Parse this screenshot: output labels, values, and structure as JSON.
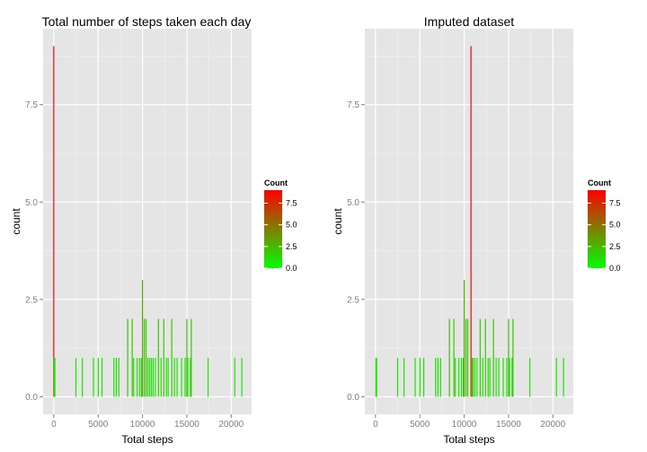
{
  "chart_data": [
    {
      "type": "bar",
      "title": "Total number of steps taken each day",
      "xlabel": "Total steps",
      "ylabel": "count",
      "xlim": [
        -1200,
        22300
      ],
      "ylim": [
        -0.45,
        9.45
      ],
      "x_ticks": [
        0,
        5000,
        10000,
        15000,
        20000
      ],
      "x_tick_labels": [
        "0",
        "5000",
        "10000",
        "15000",
        "20000"
      ],
      "y_ticks": [
        0,
        2.5,
        5,
        7.5
      ],
      "y_tick_labels": [
        "0.0",
        "2.5",
        "5.0",
        "7.5"
      ],
      "grid": true,
      "legend": {
        "title": "Count",
        "placement": "right",
        "range": [
          0,
          9
        ],
        "ticks": [
          0,
          2.5,
          5,
          7.5
        ],
        "tick_labels": [
          "0.0",
          "2.5",
          "5.0",
          "7.5"
        ],
        "color_low": "#00ff00",
        "color_high": "#ff0000"
      },
      "bars": [
        {
          "x": 0,
          "count": 9
        },
        {
          "x": 41,
          "count": 1
        },
        {
          "x": 126,
          "count": 1
        },
        {
          "x": 2492,
          "count": 1
        },
        {
          "x": 3219,
          "count": 1
        },
        {
          "x": 4472,
          "count": 1
        },
        {
          "x": 5018,
          "count": 1
        },
        {
          "x": 5441,
          "count": 1
        },
        {
          "x": 6778,
          "count": 1
        },
        {
          "x": 7047,
          "count": 1
        },
        {
          "x": 7336,
          "count": 1
        },
        {
          "x": 8334,
          "count": 2
        },
        {
          "x": 8841,
          "count": 2
        },
        {
          "x": 9000,
          "count": 1
        },
        {
          "x": 9400,
          "count": 1
        },
        {
          "x": 9700,
          "count": 1
        },
        {
          "x": 9900,
          "count": 1
        },
        {
          "x": 10000,
          "count": 3
        },
        {
          "x": 10200,
          "count": 2
        },
        {
          "x": 10400,
          "count": 2
        },
        {
          "x": 10600,
          "count": 1
        },
        {
          "x": 10800,
          "count": 1
        },
        {
          "x": 11000,
          "count": 1
        },
        {
          "x": 11200,
          "count": 1
        },
        {
          "x": 11450,
          "count": 1
        },
        {
          "x": 11800,
          "count": 2
        },
        {
          "x": 12100,
          "count": 1
        },
        {
          "x": 12400,
          "count": 2
        },
        {
          "x": 12700,
          "count": 1
        },
        {
          "x": 12900,
          "count": 1
        },
        {
          "x": 13300,
          "count": 2
        },
        {
          "x": 13600,
          "count": 1
        },
        {
          "x": 13900,
          "count": 1
        },
        {
          "x": 14400,
          "count": 1
        },
        {
          "x": 14800,
          "count": 1
        },
        {
          "x": 15000,
          "count": 2
        },
        {
          "x": 15100,
          "count": 1
        },
        {
          "x": 15400,
          "count": 1
        },
        {
          "x": 15500,
          "count": 2
        },
        {
          "x": 17400,
          "count": 1
        },
        {
          "x": 20400,
          "count": 1
        },
        {
          "x": 21200,
          "count": 1
        }
      ]
    },
    {
      "type": "bar",
      "title": "Imputed dataset",
      "xlabel": "Total steps",
      "ylabel": "count",
      "xlim": [
        -1200,
        22300
      ],
      "ylim": [
        -0.45,
        9.45
      ],
      "x_ticks": [
        0,
        5000,
        10000,
        15000,
        20000
      ],
      "x_tick_labels": [
        "0",
        "5000",
        "10000",
        "15000",
        "20000"
      ],
      "y_ticks": [
        0,
        2.5,
        5,
        7.5
      ],
      "y_tick_labels": [
        "0.0",
        "2.5",
        "5.0",
        "7.5"
      ],
      "grid": true,
      "legend": {
        "title": "Count",
        "placement": "right",
        "range": [
          0,
          9
        ],
        "ticks": [
          0,
          2.5,
          5,
          7.5
        ],
        "tick_labels": [
          "0.0",
          "2.5",
          "5.0",
          "7.5"
        ],
        "color_low": "#00ff00",
        "color_high": "#ff0000"
      },
      "bars": [
        {
          "x": 41,
          "count": 1
        },
        {
          "x": 126,
          "count": 1
        },
        {
          "x": 2492,
          "count": 1
        },
        {
          "x": 3219,
          "count": 1
        },
        {
          "x": 4472,
          "count": 1
        },
        {
          "x": 5018,
          "count": 1
        },
        {
          "x": 5441,
          "count": 1
        },
        {
          "x": 6778,
          "count": 1
        },
        {
          "x": 7047,
          "count": 1
        },
        {
          "x": 7336,
          "count": 1
        },
        {
          "x": 8334,
          "count": 2
        },
        {
          "x": 8841,
          "count": 2
        },
        {
          "x": 9000,
          "count": 1
        },
        {
          "x": 9400,
          "count": 1
        },
        {
          "x": 9700,
          "count": 1
        },
        {
          "x": 9900,
          "count": 1
        },
        {
          "x": 10000,
          "count": 3
        },
        {
          "x": 10200,
          "count": 2
        },
        {
          "x": 10400,
          "count": 2
        },
        {
          "x": 10766,
          "count": 9
        },
        {
          "x": 10900,
          "count": 1
        },
        {
          "x": 11000,
          "count": 1
        },
        {
          "x": 11200,
          "count": 1
        },
        {
          "x": 11450,
          "count": 1
        },
        {
          "x": 11800,
          "count": 2
        },
        {
          "x": 12100,
          "count": 1
        },
        {
          "x": 12400,
          "count": 2
        },
        {
          "x": 12700,
          "count": 1
        },
        {
          "x": 12900,
          "count": 1
        },
        {
          "x": 13300,
          "count": 2
        },
        {
          "x": 13600,
          "count": 1
        },
        {
          "x": 13900,
          "count": 1
        },
        {
          "x": 14400,
          "count": 1
        },
        {
          "x": 14800,
          "count": 1
        },
        {
          "x": 15000,
          "count": 2
        },
        {
          "x": 15100,
          "count": 1
        },
        {
          "x": 15400,
          "count": 1
        },
        {
          "x": 15500,
          "count": 2
        },
        {
          "x": 17400,
          "count": 1
        },
        {
          "x": 20400,
          "count": 1
        },
        {
          "x": 21200,
          "count": 1
        }
      ]
    }
  ]
}
